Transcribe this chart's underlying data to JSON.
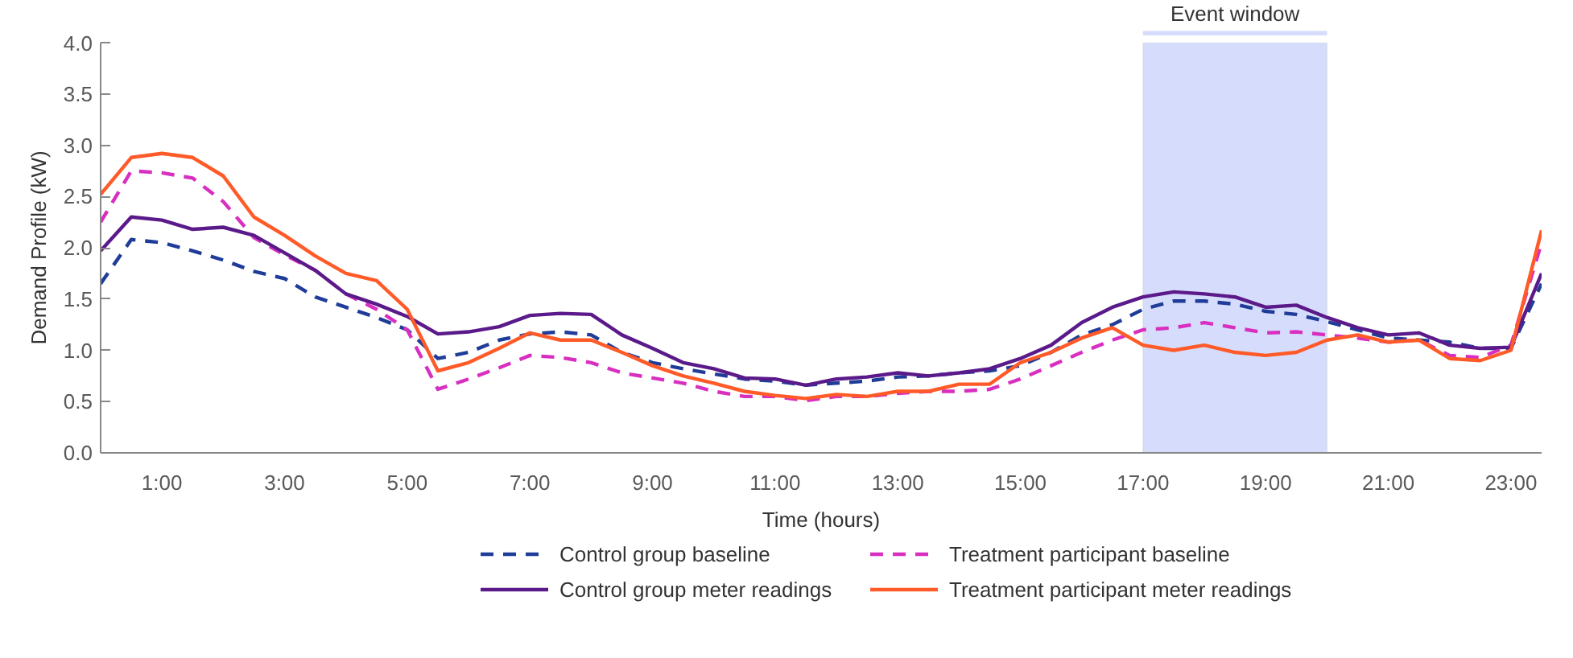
{
  "chart_data": {
    "type": "line",
    "xlabel": "Time (hours)",
    "ylabel": "Demand Profile (kW)",
    "x": [
      0,
      0.5,
      1,
      1.5,
      2,
      2.5,
      3,
      3.5,
      4,
      4.5,
      5,
      5.5,
      6,
      6.5,
      7,
      7.5,
      8,
      8.5,
      9,
      9.5,
      10,
      10.5,
      11,
      11.5,
      12,
      12.5,
      13,
      13.5,
      14,
      14.5,
      15,
      15.5,
      16,
      16.5,
      17,
      17.5,
      18,
      18.5,
      19,
      19.5,
      20,
      20.5,
      21,
      21.5,
      22,
      22.5,
      23,
      23.5
    ],
    "xlim": [
      0,
      23.5
    ],
    "xticks": [
      {
        "value": 1,
        "label": "1:00"
      },
      {
        "value": 3,
        "label": "3:00"
      },
      {
        "value": 5,
        "label": "5:00"
      },
      {
        "value": 7,
        "label": "7:00"
      },
      {
        "value": 9,
        "label": "9:00"
      },
      {
        "value": 11,
        "label": "11:00"
      },
      {
        "value": 13,
        "label": "13:00"
      },
      {
        "value": 15,
        "label": "15:00"
      },
      {
        "value": 17,
        "label": "17:00"
      },
      {
        "value": 19,
        "label": "19:00"
      },
      {
        "value": 21,
        "label": "21:00"
      },
      {
        "value": 23,
        "label": "23:00"
      }
    ],
    "ylim": [
      0,
      4
    ],
    "yticks": [
      {
        "value": 0,
        "label": "0.0"
      },
      {
        "value": 0.5,
        "label": "0.5"
      },
      {
        "value": 1,
        "label": "1.0"
      },
      {
        "value": 1.5,
        "label": "1.5"
      },
      {
        "value": 2,
        "label": "2.0"
      },
      {
        "value": 2.5,
        "label": "2.5"
      },
      {
        "value": 3,
        "label": "3.0"
      },
      {
        "value": 3.5,
        "label": "3.5"
      },
      {
        "value": 4,
        "label": "4.0"
      }
    ],
    "grid": false,
    "legend": "bottom",
    "marker": "none",
    "bands": [
      {
        "axis": "x",
        "from": 17,
        "to": 20,
        "label": "Event window",
        "color": "#d6dcfb"
      }
    ],
    "series": [
      {
        "name": "Control group baseline",
        "color": "#1f3c99",
        "line_style": "dashed",
        "values": [
          1.65,
          2.08,
          2.05,
          1.97,
          1.88,
          1.77,
          1.7,
          1.52,
          1.42,
          1.32,
          1.2,
          0.92,
          0.98,
          1.1,
          1.16,
          1.18,
          1.15,
          0.98,
          0.88,
          0.82,
          0.77,
          0.72,
          0.7,
          0.66,
          0.68,
          0.7,
          0.74,
          0.75,
          0.78,
          0.8,
          0.85,
          0.98,
          1.15,
          1.25,
          1.4,
          1.48,
          1.48,
          1.45,
          1.38,
          1.35,
          1.28,
          1.2,
          1.12,
          1.1,
          1.08,
          1.02,
          1.02,
          1.65
        ]
      },
      {
        "name": "Treatment participant baseline",
        "color": "#d82fc0",
        "line_style": "dashed",
        "values": [
          2.25,
          2.75,
          2.73,
          2.68,
          2.45,
          2.1,
          1.93,
          1.78,
          1.55,
          1.4,
          1.2,
          0.62,
          0.72,
          0.83,
          0.95,
          0.93,
          0.88,
          0.78,
          0.73,
          0.68,
          0.6,
          0.55,
          0.55,
          0.51,
          0.55,
          0.55,
          0.58,
          0.6,
          0.6,
          0.62,
          0.72,
          0.85,
          0.98,
          1.1,
          1.2,
          1.22,
          1.27,
          1.22,
          1.17,
          1.18,
          1.15,
          1.12,
          1.08,
          1.1,
          0.95,
          0.93,
          1.05,
          2.05
        ]
      },
      {
        "name": "Control group meter readings",
        "color": "#5b1a8a",
        "line_style": "solid",
        "values": [
          1.97,
          2.3,
          2.27,
          2.18,
          2.2,
          2.12,
          1.95,
          1.78,
          1.55,
          1.45,
          1.33,
          1.16,
          1.18,
          1.23,
          1.34,
          1.36,
          1.35,
          1.15,
          1.02,
          0.88,
          0.82,
          0.73,
          0.72,
          0.66,
          0.72,
          0.74,
          0.78,
          0.75,
          0.78,
          0.82,
          0.92,
          1.05,
          1.27,
          1.42,
          1.52,
          1.57,
          1.55,
          1.52,
          1.42,
          1.44,
          1.32,
          1.22,
          1.15,
          1.17,
          1.05,
          1.02,
          1.03,
          1.75
        ]
      },
      {
        "name": "Treatment participant meter readings",
        "color": "#ff5a28",
        "line_style": "solid",
        "values": [
          2.52,
          2.88,
          2.92,
          2.88,
          2.7,
          2.3,
          2.12,
          1.92,
          1.75,
          1.68,
          1.4,
          0.8,
          0.88,
          1.02,
          1.17,
          1.1,
          1.1,
          0.98,
          0.85,
          0.75,
          0.68,
          0.6,
          0.56,
          0.53,
          0.57,
          0.55,
          0.6,
          0.6,
          0.67,
          0.67,
          0.88,
          0.98,
          1.12,
          1.22,
          1.05,
          1.0,
          1.05,
          0.98,
          0.95,
          0.98,
          1.1,
          1.15,
          1.08,
          1.1,
          0.92,
          0.9,
          1.0,
          2.17
        ]
      }
    ]
  }
}
